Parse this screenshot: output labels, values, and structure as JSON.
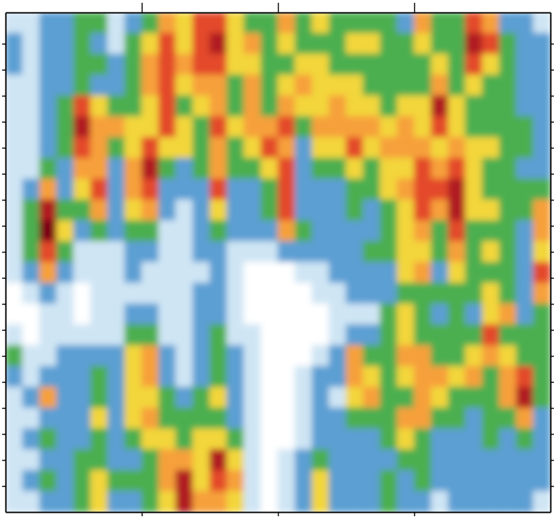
{
  "chart_data": {
    "type": "heatmap",
    "tick_labels": false,
    "xlim": [
      0,
      32
    ],
    "xticks": [
      8,
      16,
      24
    ],
    "ylim": [
      0,
      24
    ],
    "yticks": [
      1.25,
      2.5,
      3.75,
      5,
      6.25,
      7.5,
      8.75,
      10,
      11.25,
      12.5,
      13.75,
      15,
      16.25,
      17.5,
      18.75,
      20,
      21.25,
      22.5
    ],
    "zlim": [
      0,
      8
    ],
    "x": [
      0.5,
      1.5,
      2.5,
      3.5,
      4.5,
      5.5,
      6.5,
      7.5,
      8.5,
      9.5,
      10.5,
      11.5,
      12.5,
      13.5,
      14.5,
      15.5,
      16.5,
      17.5,
      18.5,
      19.5,
      20.5,
      21.5,
      22.5,
      23.5,
      24.5,
      25.5,
      26.5,
      27.5,
      28.5,
      29.5,
      30.5,
      31.5
    ],
    "y": [
      23.5,
      22.5,
      21.5,
      20.5,
      19.5,
      18.5,
      17.5,
      16.5,
      15.5,
      14.5,
      13.5,
      12.5,
      11.5,
      10.5,
      9.5,
      8.5,
      7.5,
      6.5,
      5.5,
      4.5,
      3.5,
      2.5,
      1.5,
      0.5
    ],
    "z": [
      [
        1,
        1,
        2,
        2,
        3,
        3,
        1,
        2,
        3,
        5,
        4,
        6,
        6,
        4,
        3,
        3,
        5,
        3,
        4,
        3,
        3,
        3,
        3,
        2,
        5,
        3,
        3,
        6,
        5,
        2,
        2,
        1
      ],
      [
        2,
        1,
        2,
        2,
        3,
        2,
        1,
        3,
        4,
        6,
        4,
        6,
        7,
        4,
        5,
        3,
        4,
        3,
        3,
        3,
        4,
        4,
        3,
        3,
        4,
        3,
        3,
        7,
        6,
        3,
        2,
        2
      ],
      [
        2,
        1,
        2,
        2,
        3,
        3,
        2,
        3,
        5,
        6,
        5,
        6,
        6,
        4,
        4,
        3,
        3,
        4,
        4,
        3,
        3,
        3,
        3,
        3,
        3,
        4,
        3,
        6,
        4,
        3,
        2,
        2
      ],
      [
        1,
        1,
        2,
        2,
        3,
        2,
        2,
        3,
        5,
        6,
        4,
        5,
        5,
        3,
        5,
        3,
        4,
        5,
        4,
        4,
        4,
        3,
        3,
        3,
        3,
        5,
        3,
        4,
        3,
        3,
        2,
        2
      ],
      [
        1,
        1,
        2,
        3,
        6,
        4,
        3,
        3,
        4,
        6,
        3,
        4,
        5,
        3,
        5,
        3,
        5,
        4,
        4,
        5,
        4,
        4,
        3,
        4,
        4,
        7,
        4,
        3,
        3,
        3,
        2,
        2
      ],
      [
        1,
        1,
        2,
        3,
        7,
        5,
        5,
        4,
        4,
        6,
        4,
        3,
        6,
        4,
        5,
        5,
        6,
        3,
        5,
        5,
        5,
        5,
        4,
        5,
        4,
        6,
        4,
        3,
        3,
        3,
        3,
        2
      ],
      [
        1,
        1,
        2,
        3,
        6,
        5,
        3,
        4,
        6,
        4,
        4,
        3,
        5,
        3,
        4,
        6,
        5,
        2,
        4,
        4,
        6,
        4,
        5,
        5,
        5,
        4,
        5,
        4,
        4,
        3,
        3,
        2
      ],
      [
        1,
        1,
        3,
        2,
        5,
        5,
        2,
        5,
        7,
        3,
        2,
        3,
        5,
        3,
        3,
        4,
        6,
        2,
        3,
        3,
        4,
        3,
        4,
        4,
        6,
        5,
        6,
        4,
        3,
        3,
        2,
        2
      ],
      [
        1,
        2,
        5,
        2,
        4,
        6,
        2,
        5,
        6,
        2,
        2,
        2,
        6,
        2,
        2,
        3,
        6,
        2,
        2,
        2,
        3,
        3,
        4,
        5,
        6,
        6,
        7,
        4,
        3,
        3,
        3,
        3
      ],
      [
        1,
        3,
        7,
        3,
        3,
        5,
        2,
        4,
        5,
        2,
        1,
        2,
        4,
        2,
        2,
        3,
        6,
        2,
        2,
        2,
        3,
        2,
        3,
        4,
        6,
        5,
        7,
        4,
        4,
        3,
        3,
        5
      ],
      [
        1,
        3,
        8,
        4,
        2,
        3,
        2,
        3,
        3,
        1,
        1,
        2,
        3,
        2,
        2,
        2,
        5,
        3,
        2,
        2,
        2,
        2,
        3,
        4,
        5,
        3,
        6,
        3,
        3,
        3,
        2,
        5
      ],
      [
        1,
        3,
        6,
        3,
        1,
        1,
        1,
        2,
        2,
        1,
        1,
        2,
        2,
        1,
        1,
        1,
        2,
        2,
        2,
        2,
        2,
        3,
        3,
        4,
        4,
        3,
        5,
        3,
        4,
        3,
        2,
        4
      ],
      [
        1,
        2,
        5,
        2,
        1,
        1,
        1,
        2,
        1,
        1,
        1,
        1,
        2,
        1,
        0,
        0,
        0,
        1,
        1,
        2,
        2,
        2,
        2,
        4,
        5,
        2,
        4,
        3,
        3,
        3,
        2,
        6
      ],
      [
        0,
        1,
        2,
        1,
        0,
        1,
        1,
        1,
        1,
        1,
        1,
        2,
        2,
        1,
        0,
        0,
        0,
        0,
        1,
        1,
        2,
        2,
        2,
        3,
        3,
        3,
        3,
        3,
        4,
        3,
        2,
        5
      ],
      [
        0,
        0,
        1,
        1,
        0,
        1,
        1,
        2,
        2,
        1,
        1,
        2,
        2,
        1,
        0,
        0,
        0,
        0,
        0,
        1,
        1,
        1,
        3,
        4,
        3,
        2,
        3,
        2,
        4,
        5,
        2,
        3
      ],
      [
        1,
        0,
        1,
        1,
        1,
        1,
        1,
        3,
        3,
        1,
        1,
        2,
        3,
        1,
        1,
        0,
        0,
        0,
        0,
        1,
        2,
        2,
        3,
        4,
        3,
        3,
        3,
        3,
        6,
        3,
        3,
        3
      ],
      [
        3,
        1,
        1,
        2,
        2,
        2,
        2,
        4,
        5,
        2,
        1,
        2,
        3,
        2,
        1,
        0,
        0,
        0,
        1,
        2,
        5,
        3,
        3,
        5,
        5,
        3,
        3,
        4,
        5,
        4,
        3,
        3
      ],
      [
        2,
        1,
        2,
        2,
        2,
        3,
        2,
        4,
        5,
        2,
        1,
        2,
        3,
        2,
        1,
        0,
        0,
        1,
        2,
        2,
        5,
        4,
        3,
        4,
        5,
        5,
        4,
        5,
        3,
        5,
        6,
        3
      ],
      [
        1,
        2,
        5,
        2,
        2,
        3,
        2,
        4,
        4,
        3,
        2,
        3,
        4,
        2,
        1,
        0,
        0,
        1,
        2,
        1,
        4,
        5,
        3,
        3,
        5,
        4,
        3,
        3,
        3,
        5,
        7,
        3
      ],
      [
        1,
        1,
        2,
        2,
        2,
        4,
        2,
        4,
        5,
        3,
        3,
        3,
        3,
        2,
        1,
        0,
        0,
        1,
        2,
        2,
        3,
        3,
        3,
        5,
        5,
        3,
        3,
        2,
        3,
        3,
        5,
        2
      ],
      [
        1,
        2,
        3,
        2,
        2,
        3,
        2,
        3,
        4,
        4,
        3,
        4,
        4,
        3,
        1,
        0,
        0,
        1,
        2,
        2,
        2,
        2,
        3,
        4,
        3,
        2,
        2,
        2,
        3,
        2,
        3,
        2
      ],
      [
        1,
        1,
        2,
        2,
        3,
        3,
        2,
        2,
        3,
        5,
        5,
        4,
        7,
        4,
        1,
        0,
        1,
        2,
        3,
        2,
        2,
        2,
        2,
        3,
        3,
        2,
        2,
        2,
        2,
        2,
        2,
        2
      ],
      [
        1,
        2,
        3,
        2,
        3,
        4,
        3,
        3,
        3,
        5,
        7,
        4,
        6,
        5,
        1,
        0,
        1,
        2,
        4,
        2,
        2,
        2,
        3,
        2,
        3,
        2,
        2,
        2,
        2,
        2,
        2,
        2
      ],
      [
        1,
        1,
        2,
        2,
        3,
        4,
        2,
        2,
        3,
        4,
        7,
        5,
        5,
        4,
        1,
        0,
        1,
        2,
        4,
        2,
        2,
        2,
        3,
        2,
        2,
        1,
        2,
        2,
        2,
        2,
        2,
        1
      ]
    ]
  }
}
